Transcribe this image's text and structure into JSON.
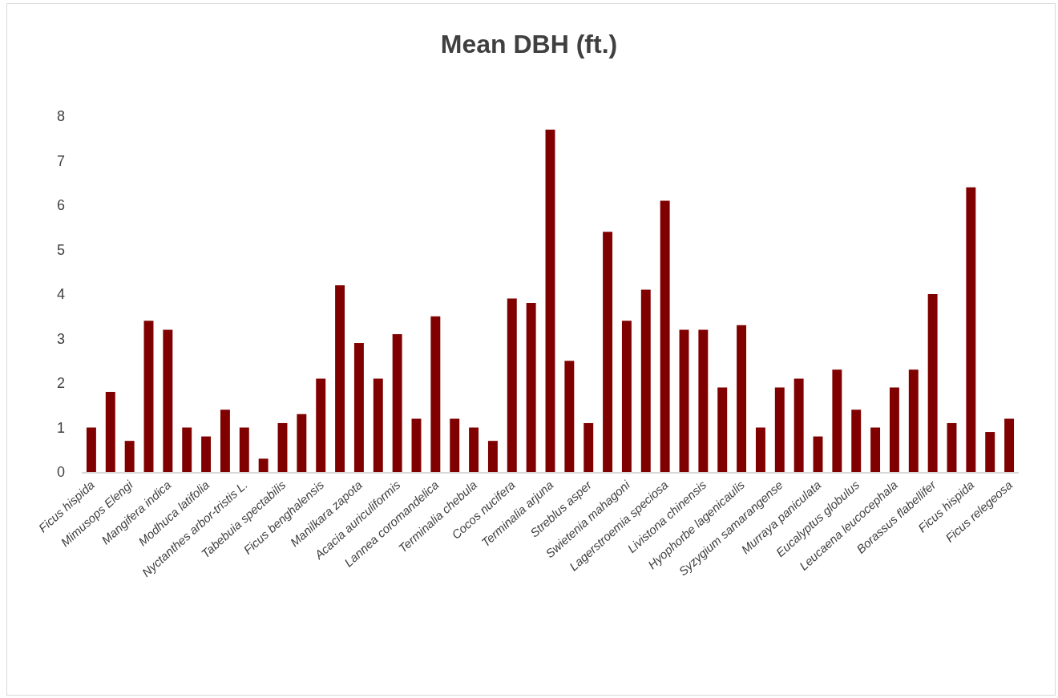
{
  "chart_data": {
    "type": "bar",
    "title": "Mean DBH (ft.)",
    "categories": [
      "Ficus hispida",
      null,
      "Mimusops Elengi",
      null,
      "Mangifera indica",
      null,
      "Modhuca latifolia",
      null,
      "Nyctanthes arbor-tristis L.",
      null,
      "Tabebuia spectabilis",
      null,
      "Ficus benghalensis",
      null,
      "Manilkara zapota",
      null,
      "Acacia auriculiformis",
      null,
      "Lannea coromandelica",
      null,
      "Terminalia chebula",
      null,
      "Cocos nucifera",
      null,
      "Terminalia arjuna",
      null,
      "Streblus asper",
      null,
      "Swietenia mahagoni",
      null,
      "Lagerstroemia speciosa",
      null,
      "Livistona chinensis",
      null,
      "Hyophorbe lagenicaulis",
      null,
      "Syzygium samarangense",
      null,
      "Murraya paniculata",
      null,
      "Eucalyptus globulus",
      null,
      "Leucaena leucocephala",
      null,
      "Borassus flabellifer",
      null,
      "Ficus hispida",
      null,
      "Ficus relegeosa"
    ],
    "values": [
      1.0,
      1.8,
      0.7,
      3.4,
      3.2,
      1.0,
      0.8,
      1.4,
      1.0,
      0.3,
      1.1,
      1.3,
      2.1,
      4.2,
      2.9,
      2.1,
      3.1,
      1.2,
      3.5,
      1.2,
      1.0,
      0.7,
      3.9,
      3.8,
      7.7,
      2.5,
      1.1,
      5.4,
      3.4,
      4.1,
      6.1,
      3.2,
      3.2,
      1.9,
      3.3,
      1.0,
      1.9,
      2.1,
      0.8,
      2.3,
      1.4,
      1.0,
      1.9,
      2.3,
      4.0,
      1.1,
      6.4,
      0.9,
      1.2
    ],
    "color": "#800000",
    "ylim": [
      0,
      8
    ],
    "yticks": [
      0,
      1,
      2,
      3,
      4,
      5,
      6,
      7,
      8
    ]
  }
}
